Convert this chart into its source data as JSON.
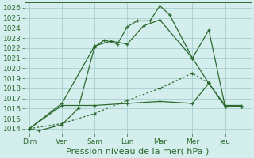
{
  "x_labels": [
    "Dim",
    "Ven",
    "Sam",
    "Lun",
    "Mar",
    "Mer",
    "Jeu"
  ],
  "x_ticks": [
    0,
    1,
    2,
    3,
    4,
    5,
    6
  ],
  "line1_x": [
    0,
    0.3,
    1,
    1.5,
    2,
    2.3,
    2.7,
    3,
    3.3,
    3.7,
    4,
    4.3,
    5,
    5.5,
    6,
    6.5
  ],
  "line1_y": [
    1014.0,
    1013.8,
    1014.4,
    1016.0,
    1022.1,
    1022.8,
    1022.4,
    1024.1,
    1024.7,
    1024.7,
    1026.2,
    1025.3,
    1021.0,
    1018.5,
    1016.3,
    1016.3
  ],
  "line2_x": [
    0,
    1,
    2,
    2.5,
    3,
    3.5,
    4,
    5,
    5.5,
    6,
    6.5
  ],
  "line2_y": [
    1014.0,
    1016.5,
    1022.2,
    1022.7,
    1022.4,
    1024.2,
    1024.8,
    1021.0,
    1023.8,
    1016.2,
    1016.2
  ],
  "line3_x": [
    0,
    1,
    2,
    3,
    4,
    5,
    5.5,
    6,
    6.5
  ],
  "line3_y": [
    1014.0,
    1016.3,
    1016.3,
    1016.5,
    1016.7,
    1016.5,
    1018.5,
    1016.2,
    1016.2
  ],
  "line4_x": [
    0,
    1,
    2,
    3,
    4,
    5,
    5.5,
    6,
    6.5
  ],
  "line4_y": [
    1014.0,
    1014.5,
    1015.5,
    1016.8,
    1018.0,
    1019.5,
    1018.5,
    1016.2,
    1016.2
  ],
  "line_color": "#2d6a2d",
  "marker_color": "#2d6a2d",
  "ylabel": "Pression niveau de la mer( hPa )",
  "ylim": [
    1013.5,
    1026.5
  ],
  "yticks": [
    1014,
    1015,
    1016,
    1017,
    1018,
    1019,
    1020,
    1021,
    1022,
    1023,
    1024,
    1025,
    1026
  ],
  "xlim": [
    -0.15,
    6.8
  ],
  "background_color": "#d4eeee",
  "grid_color": "#a0c8c8",
  "spine_color": "#2d6a2d",
  "tick_fontsize": 6.5,
  "xlabel_fontsize": 8
}
